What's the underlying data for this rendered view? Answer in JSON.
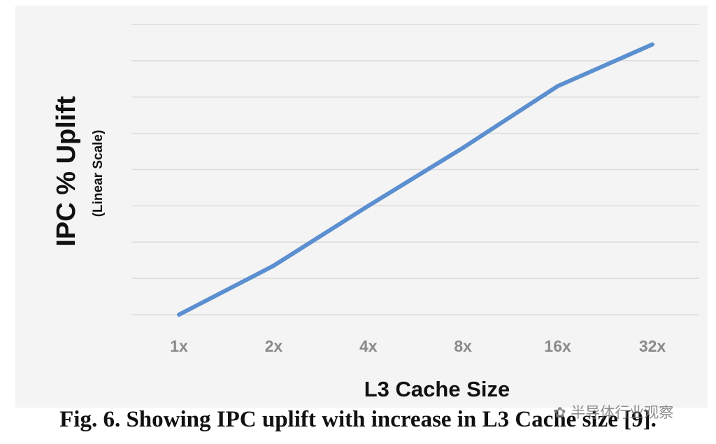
{
  "chart_data": {
    "type": "line",
    "categories": [
      "1x",
      "2x",
      "4x",
      "8x",
      "16x",
      "32x"
    ],
    "values": [
      0,
      1.35,
      3.0,
      4.6,
      6.3,
      7.45
    ],
    "ylim": [
      0,
      8
    ],
    "y_gridlines": [
      0,
      1,
      2,
      3,
      4,
      5,
      6,
      7,
      8
    ],
    "y_tick_labels_shown": false,
    "xlabel": "L3 Cache Size",
    "ylabel": "IPC % Uplift",
    "ylabel_sub": "(Linear Scale)",
    "grid": "horizontal",
    "line_color": "#5b8fd0",
    "grid_color": "#dcdcdc",
    "background_color": "#f4f4f4"
  },
  "caption": "Fig. 6. Showing IPC uplift with increase in L3 Cache size [9].",
  "watermark": "半导体行业观察"
}
